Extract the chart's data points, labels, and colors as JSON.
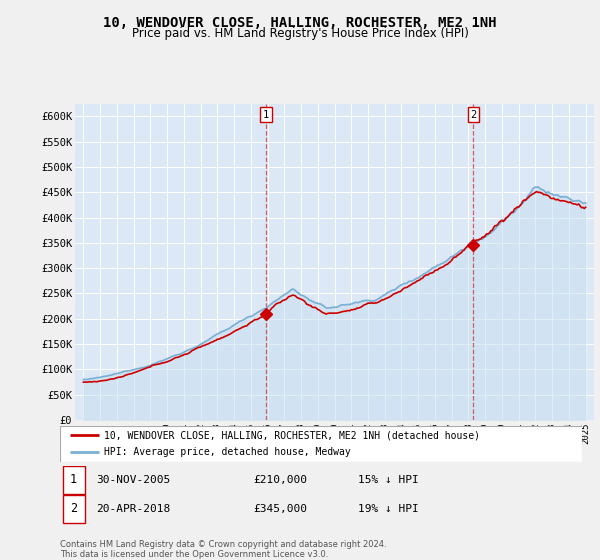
{
  "title": "10, WENDOVER CLOSE, HALLING, ROCHESTER, ME2 1NH",
  "subtitle": "Price paid vs. HM Land Registry's House Price Index (HPI)",
  "title_fontsize": 10,
  "subtitle_fontsize": 8.5,
  "ylabel_ticks": [
    "£0",
    "£50K",
    "£100K",
    "£150K",
    "£200K",
    "£250K",
    "£300K",
    "£350K",
    "£400K",
    "£450K",
    "£500K",
    "£550K",
    "£600K"
  ],
  "ytick_values": [
    0,
    50000,
    100000,
    150000,
    200000,
    250000,
    300000,
    350000,
    400000,
    450000,
    500000,
    550000,
    600000
  ],
  "ylim": [
    0,
    625000
  ],
  "hpi_color": "#7aafd4",
  "hpi_fill_color": "#c8dff0",
  "price_color": "#cc0000",
  "legend_hpi_label": "HPI: Average price, detached house, Medway",
  "legend_price_label": "10, WENDOVER CLOSE, HALLING, ROCHESTER, ME2 1NH (detached house)",
  "transaction1_price": 210000,
  "transaction1_x": 2005.917,
  "transaction2_price": 345000,
  "transaction2_x": 2018.3,
  "footer": "Contains HM Land Registry data © Crown copyright and database right 2024.\nThis data is licensed under the Open Government Licence v3.0.",
  "bg_color": "#f0f0f0",
  "plot_bg_color": "#dce8f5",
  "grid_color": "#ffffff"
}
